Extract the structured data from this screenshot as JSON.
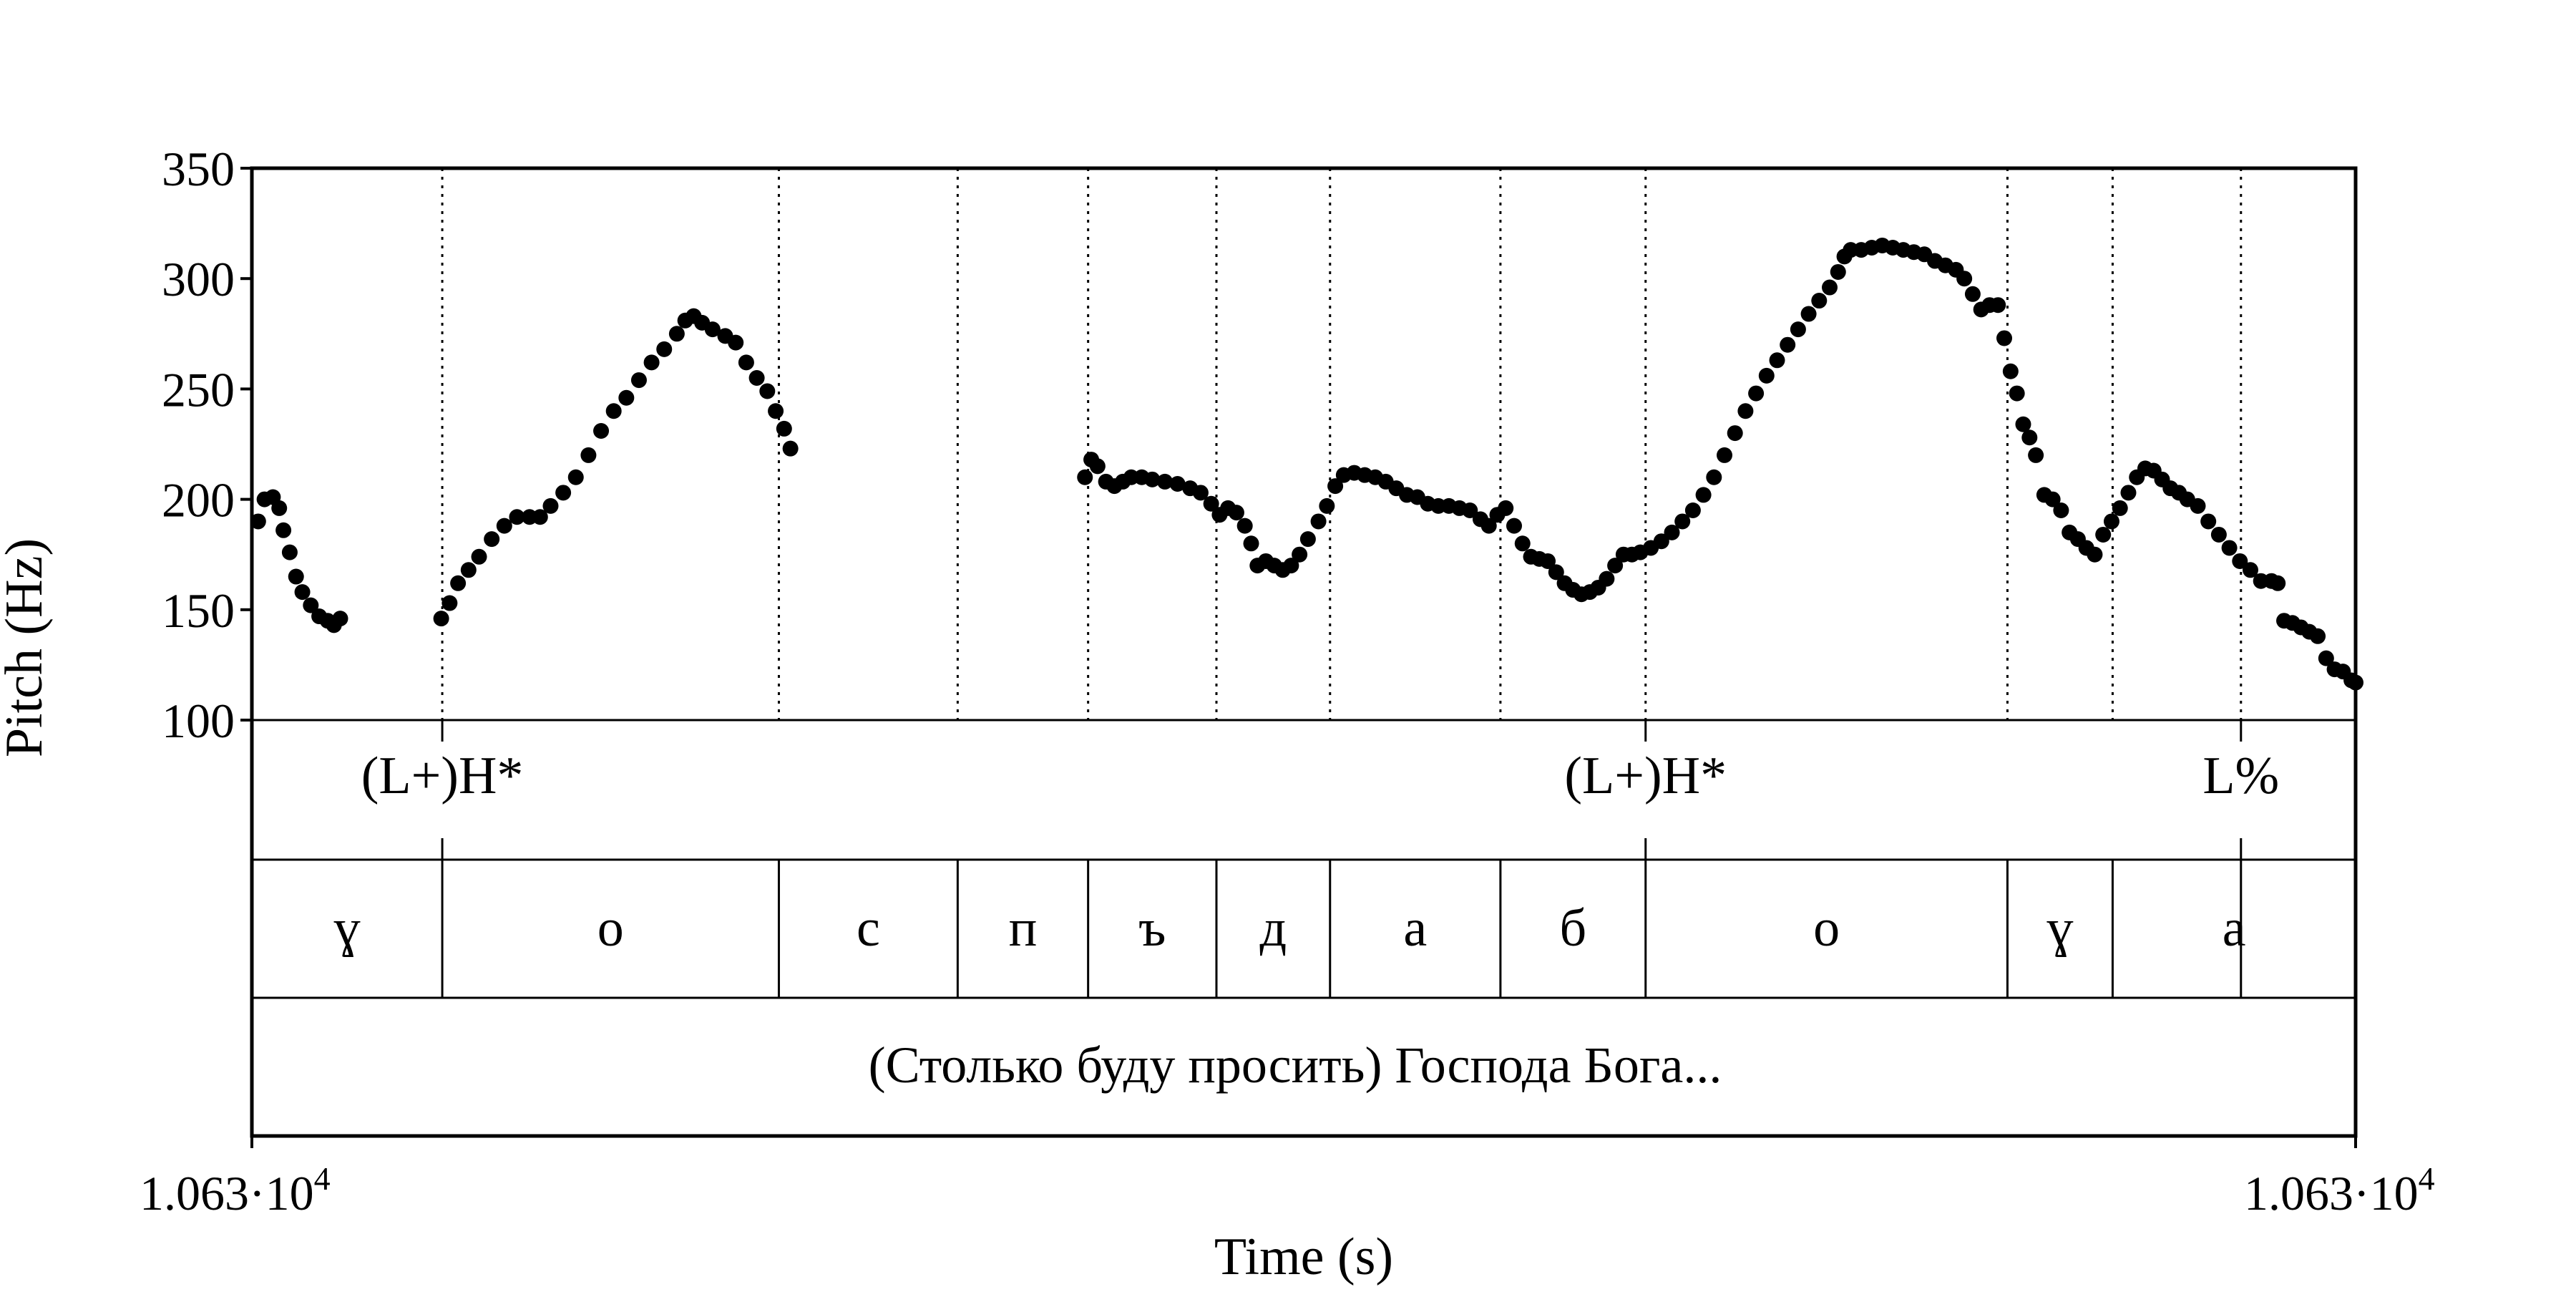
{
  "chart_data": {
    "type": "scatter",
    "ylabel": "Pitch (Hz)",
    "xlabel": "Time (s)",
    "ylim": [
      100,
      350
    ],
    "xlim": [
      0,
      1
    ],
    "yticks": [
      "100",
      "150",
      "200",
      "250",
      "300",
      "350"
    ],
    "xtick_start": "1.063·10",
    "xtick_end": "1.063·10",
    "xtick_exponent": "4",
    "marker_color": "#000000",
    "grid": false,
    "tone_tier": [
      {
        "time": 0.0905,
        "label": "(L+)H*"
      },
      {
        "time": 0.6625,
        "label": "(L+)H*"
      },
      {
        "time": 0.9455,
        "label": "L%"
      }
    ],
    "segment_boundaries": [
      0.0905,
      0.2505,
      0.3355,
      0.3975,
      0.4585,
      0.5125,
      0.5935,
      0.6625,
      0.8345,
      0.8845,
      0.9455
    ],
    "segments": [
      {
        "label": "ɣ",
        "start": 0.0,
        "end": 0.0905
      },
      {
        "label": "о",
        "start": 0.0905,
        "end": 0.2505
      },
      {
        "label": "с",
        "start": 0.2505,
        "end": 0.3355
      },
      {
        "label": "п",
        "start": 0.3355,
        "end": 0.3975
      },
      {
        "label": "ъ",
        "start": 0.3975,
        "end": 0.4585
      },
      {
        "label": "д",
        "start": 0.4585,
        "end": 0.5125
      },
      {
        "label": "а",
        "start": 0.5125,
        "end": 0.5935
      },
      {
        "label": "б",
        "start": 0.5935,
        "end": 0.6625
      },
      {
        "label": "о",
        "start": 0.6625,
        "end": 0.8345
      },
      {
        "label": "ɣ",
        "start": 0.8345,
        "end": 0.8845
      },
      {
        "label": "а",
        "start": 0.8845,
        "end": 1.0
      }
    ],
    "sentence": "(Столько буду просить) Господа Бога...",
    "pitch_contours": [
      [
        [
          0.003,
          190
        ],
        [
          0.006,
          200
        ],
        [
          0.01,
          201
        ],
        [
          0.013,
          196
        ],
        [
          0.015,
          186
        ],
        [
          0.018,
          176
        ],
        [
          0.021,
          165
        ],
        [
          0.024,
          158
        ],
        [
          0.028,
          152
        ],
        [
          0.032,
          147
        ],
        [
          0.036,
          145
        ],
        [
          0.039,
          143
        ],
        [
          0.042,
          146
        ]
      ],
      [
        [
          0.09,
          146
        ],
        [
          0.094,
          153
        ],
        [
          0.098,
          162
        ],
        [
          0.103,
          168
        ],
        [
          0.108,
          174
        ],
        [
          0.114,
          182
        ],
        [
          0.12,
          188
        ],
        [
          0.126,
          192
        ],
        [
          0.132,
          192
        ],
        [
          0.137,
          192
        ],
        [
          0.142,
          197
        ],
        [
          0.148,
          203
        ],
        [
          0.154,
          210
        ],
        [
          0.16,
          220
        ],
        [
          0.166,
          231
        ],
        [
          0.172,
          240
        ],
        [
          0.178,
          246
        ],
        [
          0.184,
          254
        ],
        [
          0.19,
          262
        ],
        [
          0.196,
          268
        ],
        [
          0.202,
          275
        ],
        [
          0.206,
          281
        ],
        [
          0.21,
          283
        ],
        [
          0.214,
          280
        ],
        [
          0.219,
          277
        ],
        [
          0.225,
          274
        ],
        [
          0.23,
          271
        ],
        [
          0.235,
          262
        ],
        [
          0.24,
          255
        ],
        [
          0.245,
          249
        ],
        [
          0.249,
          240
        ],
        [
          0.253,
          232
        ],
        [
          0.256,
          223
        ]
      ],
      [
        [
          0.396,
          210
        ],
        [
          0.399,
          218
        ],
        [
          0.402,
          215
        ],
        [
          0.406,
          208
        ],
        [
          0.41,
          206
        ],
        [
          0.414,
          208
        ],
        [
          0.418,
          210
        ],
        [
          0.423,
          210
        ],
        [
          0.428,
          209
        ],
        [
          0.434,
          208
        ],
        [
          0.44,
          207
        ],
        [
          0.446,
          205
        ],
        [
          0.451,
          203
        ],
        [
          0.456,
          198
        ],
        [
          0.46,
          193
        ],
        [
          0.464,
          196
        ],
        [
          0.468,
          194
        ],
        [
          0.472,
          188
        ],
        [
          0.475,
          180
        ],
        [
          0.478,
          170
        ],
        [
          0.482,
          172
        ],
        [
          0.486,
          170
        ],
        [
          0.49,
          168
        ],
        [
          0.494,
          170
        ],
        [
          0.498,
          175
        ],
        [
          0.502,
          182
        ],
        [
          0.507,
          190
        ],
        [
          0.511,
          197
        ],
        [
          0.515,
          206
        ],
        [
          0.519,
          211
        ],
        [
          0.524,
          212
        ],
        [
          0.529,
          211
        ],
        [
          0.534,
          210
        ],
        [
          0.539,
          208
        ],
        [
          0.544,
          205
        ],
        [
          0.549,
          202
        ],
        [
          0.554,
          201
        ],
        [
          0.559,
          198
        ],
        [
          0.564,
          197
        ],
        [
          0.569,
          197
        ],
        [
          0.574,
          196
        ],
        [
          0.579,
          195
        ],
        [
          0.584,
          191
        ],
        [
          0.588,
          188
        ],
        [
          0.592,
          193
        ],
        [
          0.596,
          196
        ],
        [
          0.6,
          188
        ],
        [
          0.604,
          180
        ],
        [
          0.608,
          174
        ],
        [
          0.612,
          173
        ],
        [
          0.616,
          172
        ],
        [
          0.62,
          167
        ],
        [
          0.624,
          162
        ],
        [
          0.628,
          159
        ],
        [
          0.632,
          157
        ],
        [
          0.636,
          158
        ],
        [
          0.64,
          160
        ],
        [
          0.644,
          164
        ],
        [
          0.648,
          170
        ],
        [
          0.652,
          175
        ],
        [
          0.656,
          175
        ],
        [
          0.66,
          176
        ],
        [
          0.665,
          178
        ],
        [
          0.67,
          181
        ],
        [
          0.675,
          185
        ],
        [
          0.68,
          190
        ],
        [
          0.685,
          195
        ],
        [
          0.69,
          202
        ],
        [
          0.695,
          210
        ],
        [
          0.7,
          220
        ],
        [
          0.705,
          230
        ],
        [
          0.71,
          240
        ],
        [
          0.715,
          248
        ],
        [
          0.72,
          256
        ],
        [
          0.725,
          263
        ],
        [
          0.73,
          270
        ],
        [
          0.735,
          277
        ],
        [
          0.74,
          284
        ],
        [
          0.745,
          290
        ],
        [
          0.75,
          296
        ],
        [
          0.754,
          303
        ],
        [
          0.757,
          310
        ],
        [
          0.76,
          313
        ],
        [
          0.765,
          313
        ],
        [
          0.77,
          314
        ],
        [
          0.775,
          315
        ],
        [
          0.78,
          314
        ],
        [
          0.785,
          313
        ],
        [
          0.79,
          312
        ],
        [
          0.795,
          311
        ],
        [
          0.8,
          308
        ],
        [
          0.805,
          306
        ],
        [
          0.81,
          304
        ],
        [
          0.814,
          300
        ],
        [
          0.818,
          293
        ],
        [
          0.822,
          286
        ],
        [
          0.826,
          288
        ],
        [
          0.83,
          288
        ],
        [
          0.833,
          273
        ],
        [
          0.836,
          258
        ],
        [
          0.839,
          248
        ],
        [
          0.842,
          234
        ],
        [
          0.845,
          228
        ],
        [
          0.848,
          220
        ],
        [
          0.852,
          202
        ],
        [
          0.856,
          200
        ],
        [
          0.86,
          195
        ],
        [
          0.864,
          185
        ],
        [
          0.868,
          182
        ],
        [
          0.872,
          178
        ],
        [
          0.876,
          175
        ],
        [
          0.88,
          184
        ],
        [
          0.884,
          190
        ],
        [
          0.888,
          196
        ],
        [
          0.892,
          203
        ],
        [
          0.896,
          210
        ],
        [
          0.9,
          214
        ],
        [
          0.904,
          213
        ],
        [
          0.908,
          209
        ],
        [
          0.912,
          205
        ],
        [
          0.916,
          203
        ],
        [
          0.92,
          200
        ],
        [
          0.925,
          197
        ],
        [
          0.93,
          190
        ],
        [
          0.935,
          184
        ],
        [
          0.94,
          178
        ],
        [
          0.945,
          172
        ],
        [
          0.95,
          168
        ],
        [
          0.955,
          163
        ],
        [
          0.96,
          163
        ],
        [
          0.963,
          162
        ],
        [
          0.966,
          145
        ],
        [
          0.97,
          144
        ],
        [
          0.974,
          142
        ],
        [
          0.978,
          140
        ],
        [
          0.982,
          138
        ],
        [
          0.986,
          128
        ],
        [
          0.99,
          123
        ],
        [
          0.994,
          122
        ],
        [
          0.998,
          118
        ],
        [
          1.0,
          117
        ]
      ]
    ]
  }
}
